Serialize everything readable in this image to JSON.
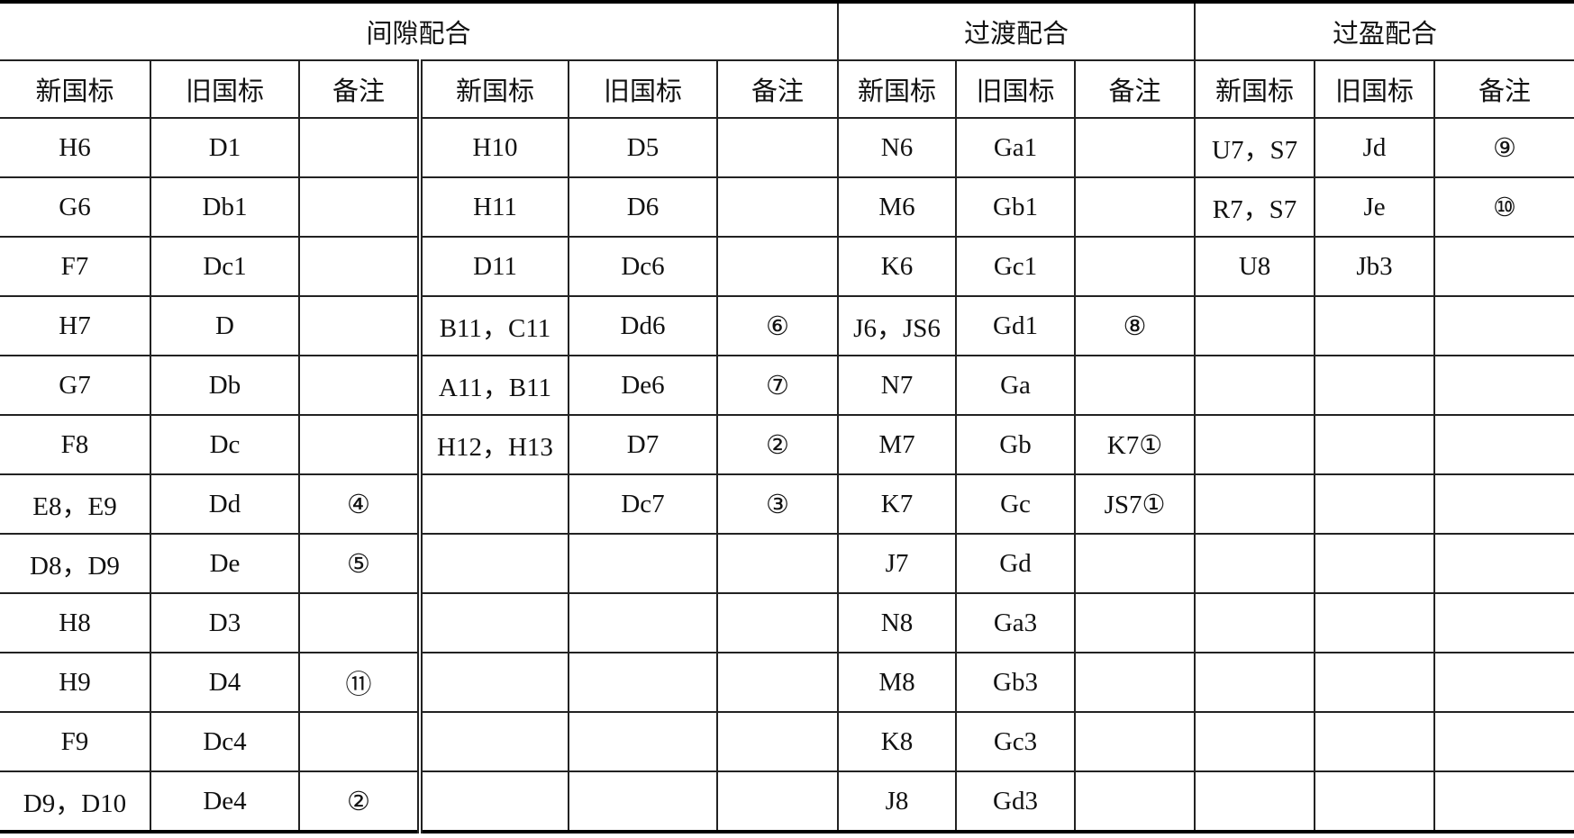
{
  "groups": [
    "间隙配合",
    "过渡配合",
    "过盈配合"
  ],
  "subheaders": [
    "新国标",
    "旧国标",
    "备注"
  ],
  "rows": [
    [
      "H6",
      "D1",
      "",
      "H10",
      "D5",
      "",
      "N6",
      "Ga1",
      "",
      "U7，S7",
      "Jd",
      "⑨"
    ],
    [
      "G6",
      "Db1",
      "",
      "H11",
      "D6",
      "",
      "M6",
      "Gb1",
      "",
      "R7，S7",
      "Je",
      "⑩"
    ],
    [
      "F7",
      "Dc1",
      "",
      "D11",
      "Dc6",
      "",
      "K6",
      "Gc1",
      "",
      "U8",
      "Jb3",
      ""
    ],
    [
      "H7",
      "D",
      "",
      "B11，C11",
      "Dd6",
      "⑥",
      "J6，JS6",
      "Gd1",
      "⑧",
      "",
      "",
      ""
    ],
    [
      "G7",
      "Db",
      "",
      "A11，B11",
      "De6",
      "⑦",
      "N7",
      "Ga",
      "",
      "",
      "",
      ""
    ],
    [
      "F8",
      "Dc",
      "",
      "H12，H13",
      "D7",
      "②",
      "M7",
      "Gb",
      "K7①",
      "",
      "",
      ""
    ],
    [
      "E8，E9",
      "Dd",
      "④",
      "",
      "Dc7",
      "③",
      "K7",
      "Gc",
      "JS7①",
      "",
      "",
      ""
    ],
    [
      "D8，D9",
      "De",
      "⑤",
      "",
      "",
      "",
      "J7",
      "Gd",
      "",
      "",
      "",
      ""
    ],
    [
      "H8",
      "D3",
      "",
      "",
      "",
      "",
      "N8",
      "Ga3",
      "",
      "",
      "",
      ""
    ],
    [
      "H9",
      "D4",
      "⑪",
      "",
      "",
      "",
      "M8",
      "Gb3",
      "",
      "",
      "",
      ""
    ],
    [
      "F9",
      "Dc4",
      "",
      "",
      "",
      "",
      "K8",
      "Gc3",
      "",
      "",
      "",
      ""
    ],
    [
      "D9，D10",
      "De4",
      "②",
      "",
      "",
      "",
      "J8",
      "Gd3",
      "",
      "",
      "",
      ""
    ]
  ]
}
